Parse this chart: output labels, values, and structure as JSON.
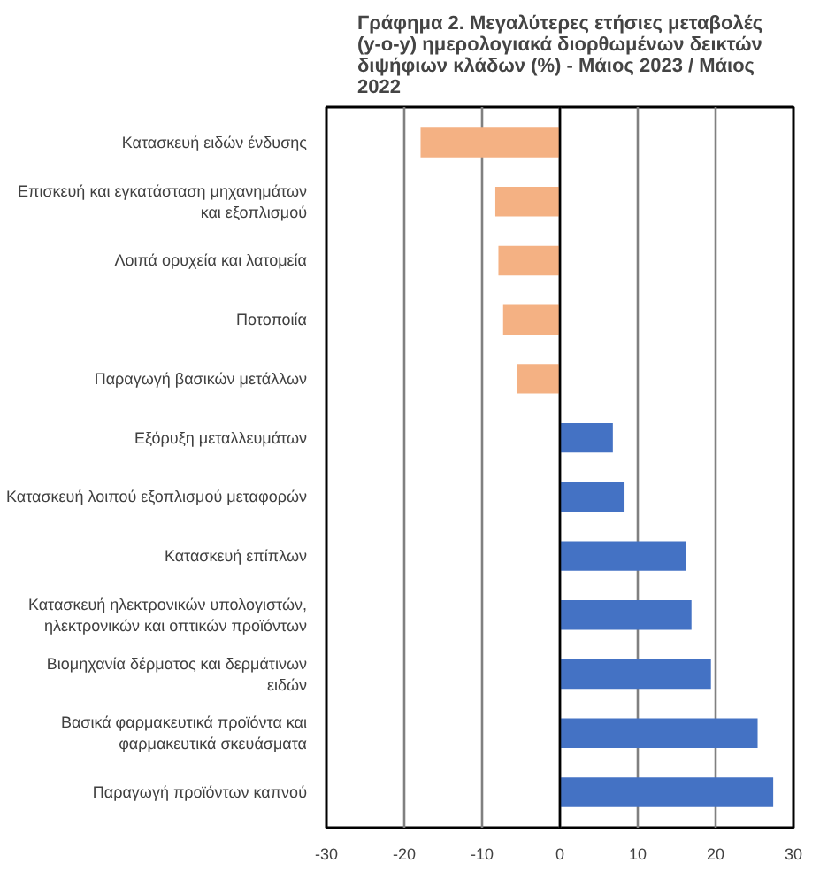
{
  "chart_data": {
    "type": "bar",
    "orientation": "horizontal",
    "title": "Γράφημα 2. Μεγαλύτερες ετήσιες μεταβολές (y-o-y) ημερολογιακά διορθωμένων δεικτών διψήφιων κλάδων (%) - Μάιος 2023 / Μάιος 2022",
    "categories": [
      "Κατασκευή ειδών ένδυσης",
      "Επισκευή και εγκατάσταση μηχανημάτων και εξοπλισμού",
      "Λοιπά ορυχεία και λατομεία",
      "Ποτοποιία",
      "Παραγωγή βασικών μετάλλων",
      "Εξόρυξη μεταλλευμάτων",
      "Κατασκευή λοιπού εξοπλισμού μεταφορών",
      "Κατασκευή επίπλων",
      "Κατασκευή ηλεκτρονικών υπολογιστών, ηλεκτρονικών και οπτικών προϊόντων",
      "Βιομηχανία δέρματος και δερμάτινων ειδών",
      "Βασικά φαρμακευτικά προϊόντα και φαρμακευτικά σκευάσματα",
      "Παραγωγή προϊόντων καπνού"
    ],
    "values": [
      -17.9,
      -8.3,
      -7.9,
      -7.3,
      -5.5,
      6.8,
      8.3,
      16.2,
      16.9,
      19.4,
      25.4,
      27.4
    ],
    "colors": [
      "#f4b183",
      "#f4b183",
      "#f4b183",
      "#f4b183",
      "#f4b183",
      "#4472c4",
      "#4472c4",
      "#4472c4",
      "#4472c4",
      "#4472c4",
      "#4472c4",
      "#4472c4"
    ],
    "xlim": [
      -30,
      30
    ],
    "xticks": [
      -30,
      -20,
      -10,
      0,
      10,
      20,
      30
    ],
    "grid": "x"
  }
}
